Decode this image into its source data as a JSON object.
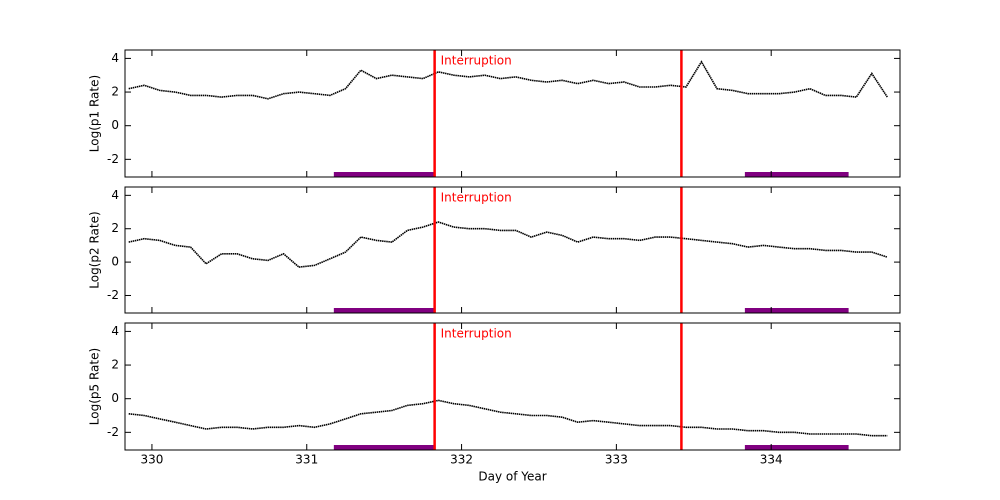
{
  "chart_data": [
    {
      "type": "scatter",
      "ylabel": "Log(p1 Rate)",
      "color": "#000000",
      "x": [
        329.85,
        329.95,
        330.05,
        330.15,
        330.25,
        330.35,
        330.45,
        330.55,
        330.65,
        330.75,
        330.85,
        330.95,
        331.05,
        331.15,
        331.25,
        331.35,
        331.45,
        331.55,
        331.65,
        331.75,
        331.85,
        331.95,
        332.05,
        332.15,
        332.25,
        332.35,
        332.45,
        332.55,
        332.65,
        332.75,
        332.85,
        332.95,
        333.05,
        333.15,
        333.25,
        333.35,
        333.45,
        333.55,
        333.65,
        333.75,
        333.85,
        333.95,
        334.05,
        334.15,
        334.25,
        334.35,
        334.45,
        334.55,
        334.65,
        334.75
      ],
      "values": [
        2.2,
        2.4,
        2.1,
        2.0,
        1.8,
        1.8,
        1.7,
        1.8,
        1.8,
        1.6,
        1.9,
        2.0,
        1.9,
        1.8,
        2.2,
        3.3,
        2.8,
        3.0,
        2.9,
        2.8,
        3.2,
        3.0,
        2.9,
        3.0,
        2.8,
        2.9,
        2.7,
        2.6,
        2.7,
        2.5,
        2.7,
        2.5,
        2.6,
        2.3,
        2.3,
        2.4,
        2.3,
        3.8,
        2.2,
        2.1,
        1.9,
        1.9,
        1.9,
        2.0,
        2.2,
        1.8,
        1.8,
        1.7,
        3.1,
        1.7
      ],
      "xlim": [
        329.826,
        334.832
      ],
      "ylim": [
        -3.05,
        4.5
      ],
      "yticks": [
        -2,
        0,
        2,
        4
      ],
      "xticks": [
        330,
        331,
        332,
        333,
        334
      ],
      "vlines": [
        331.826,
        333.42
      ],
      "vline_color": "#ff0000",
      "annotation": "Interruption",
      "spans": [
        [
          331.175,
          331.826
        ],
        [
          333.83,
          334.5
        ]
      ],
      "span_color": "#800080"
    },
    {
      "type": "scatter",
      "ylabel": "Log(p2 Rate)",
      "color": "#000000",
      "x": [
        329.85,
        329.95,
        330.05,
        330.15,
        330.25,
        330.35,
        330.45,
        330.55,
        330.65,
        330.75,
        330.85,
        330.95,
        331.05,
        331.15,
        331.25,
        331.35,
        331.45,
        331.55,
        331.65,
        331.75,
        331.85,
        331.95,
        332.05,
        332.15,
        332.25,
        332.35,
        332.45,
        332.55,
        332.65,
        332.75,
        332.85,
        332.95,
        333.05,
        333.15,
        333.25,
        333.35,
        333.45,
        333.55,
        333.65,
        333.75,
        333.85,
        333.95,
        334.05,
        334.15,
        334.25,
        334.35,
        334.45,
        334.55,
        334.65,
        334.75
      ],
      "values": [
        1.2,
        1.4,
        1.3,
        1.0,
        0.9,
        -0.1,
        0.5,
        0.5,
        0.2,
        0.1,
        0.5,
        -0.3,
        -0.2,
        0.2,
        0.6,
        1.5,
        1.3,
        1.2,
        1.9,
        2.1,
        2.4,
        2.1,
        2.0,
        2.0,
        1.9,
        1.9,
        1.5,
        1.8,
        1.6,
        1.2,
        1.5,
        1.4,
        1.4,
        1.3,
        1.5,
        1.5,
        1.4,
        1.3,
        1.2,
        1.1,
        0.9,
        1.0,
        0.9,
        0.8,
        0.8,
        0.7,
        0.7,
        0.6,
        0.6,
        0.3
      ],
      "xlim": [
        329.826,
        334.832
      ],
      "ylim": [
        -3.05,
        4.5
      ],
      "yticks": [
        -2,
        0,
        2,
        4
      ],
      "xticks": [
        330,
        331,
        332,
        333,
        334
      ],
      "vlines": [
        331.826,
        333.42
      ],
      "vline_color": "#ff0000",
      "annotation": "Interruption",
      "spans": [
        [
          331.175,
          331.826
        ],
        [
          333.83,
          334.5
        ]
      ],
      "span_color": "#800080"
    },
    {
      "type": "scatter",
      "ylabel": "Log(p5 Rate)",
      "xlabel": "Day of Year",
      "color": "#000000",
      "x": [
        329.85,
        329.95,
        330.05,
        330.15,
        330.25,
        330.35,
        330.45,
        330.55,
        330.65,
        330.75,
        330.85,
        330.95,
        331.05,
        331.15,
        331.25,
        331.35,
        331.45,
        331.55,
        331.65,
        331.75,
        331.85,
        331.95,
        332.05,
        332.15,
        332.25,
        332.35,
        332.45,
        332.55,
        332.65,
        332.75,
        332.85,
        332.95,
        333.05,
        333.15,
        333.25,
        333.35,
        333.45,
        333.55,
        333.65,
        333.75,
        333.85,
        333.95,
        334.05,
        334.15,
        334.25,
        334.35,
        334.45,
        334.55,
        334.65,
        334.75
      ],
      "values": [
        -0.9,
        -1.0,
        -1.2,
        -1.4,
        -1.6,
        -1.8,
        -1.7,
        -1.7,
        -1.8,
        -1.7,
        -1.7,
        -1.6,
        -1.7,
        -1.5,
        -1.2,
        -0.9,
        -0.8,
        -0.7,
        -0.4,
        -0.3,
        -0.1,
        -0.3,
        -0.4,
        -0.6,
        -0.8,
        -0.9,
        -1.0,
        -1.0,
        -1.1,
        -1.4,
        -1.3,
        -1.4,
        -1.5,
        -1.6,
        -1.6,
        -1.6,
        -1.7,
        -1.7,
        -1.8,
        -1.8,
        -1.9,
        -1.9,
        -2.0,
        -2.0,
        -2.1,
        -2.1,
        -2.1,
        -2.1,
        -2.2,
        -2.2
      ],
      "xlim": [
        329.826,
        334.832
      ],
      "ylim": [
        -3.05,
        4.5
      ],
      "yticks": [
        -2,
        0,
        2,
        4
      ],
      "xticks": [
        330,
        331,
        332,
        333,
        334
      ],
      "vlines": [
        331.826,
        333.42
      ],
      "vline_color": "#ff0000",
      "annotation": "Interruption",
      "spans": [
        [
          331.175,
          331.826
        ],
        [
          333.83,
          334.5
        ]
      ],
      "span_color": "#800080"
    }
  ]
}
